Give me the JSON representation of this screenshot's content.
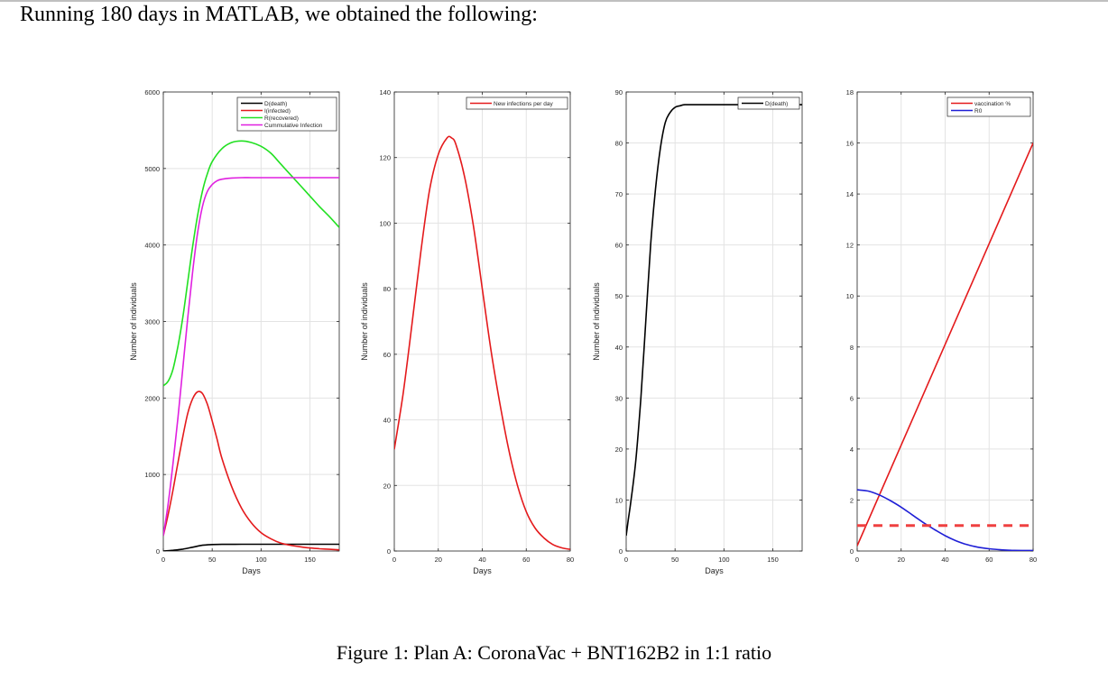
{
  "intro_text": "Running 180 days in MATLAB, we obtained the following:",
  "caption": "Figure 1: Plan A: CoronaVac + BNT162B2 in 1:1 ratio",
  "chart_data": [
    {
      "type": "line",
      "xlabel": "Days",
      "ylabel": "Number of individuals",
      "xlim": [
        0,
        180
      ],
      "ylim": [
        0,
        6000
      ],
      "xticks": [
        0,
        50,
        100,
        150
      ],
      "yticks": [
        0,
        1000,
        2000,
        3000,
        4000,
        5000,
        6000
      ],
      "grid": true,
      "legend_position": "top-right",
      "series": [
        {
          "name": "D(death)",
          "color": "#000000",
          "x": [
            0,
            10,
            20,
            30,
            40,
            50,
            60,
            80,
            100,
            120,
            150,
            180
          ],
          "y": [
            0,
            10,
            25,
            50,
            75,
            85,
            87,
            88,
            88,
            88,
            88,
            88
          ]
        },
        {
          "name": "I(infected)",
          "color": "#e41a1c",
          "x": [
            0,
            5,
            10,
            15,
            20,
            25,
            30,
            35,
            40,
            45,
            50,
            55,
            60,
            70,
            80,
            90,
            100,
            110,
            120,
            130,
            140,
            150,
            160,
            170,
            180
          ],
          "y": [
            200,
            480,
            800,
            1160,
            1500,
            1800,
            1990,
            2080,
            2060,
            1920,
            1700,
            1460,
            1210,
            840,
            560,
            370,
            240,
            160,
            105,
            75,
            55,
            40,
            30,
            22,
            15
          ]
        },
        {
          "name": "R(recovered)",
          "color": "#22e022",
          "x": [
            0,
            5,
            10,
            15,
            20,
            25,
            30,
            35,
            40,
            45,
            50,
            60,
            70,
            80,
            90,
            100,
            110,
            120,
            130,
            140,
            150,
            160,
            170,
            180
          ],
          "y": [
            2160,
            2220,
            2380,
            2680,
            3060,
            3520,
            3980,
            4380,
            4700,
            4930,
            5090,
            5260,
            5340,
            5360,
            5340,
            5290,
            5200,
            5060,
            4920,
            4780,
            4640,
            4500,
            4370,
            4230
          ]
        },
        {
          "name": "Cummulative Infection",
          "color": "#e020e0",
          "x": [
            0,
            5,
            10,
            15,
            20,
            25,
            30,
            35,
            40,
            45,
            50,
            55,
            60,
            70,
            80,
            90,
            100,
            120,
            150,
            180
          ],
          "y": [
            200,
            620,
            1150,
            1750,
            2400,
            3050,
            3650,
            4150,
            4500,
            4700,
            4790,
            4840,
            4860,
            4875,
            4880,
            4880,
            4880,
            4880,
            4880,
            4880
          ]
        }
      ]
    },
    {
      "type": "line",
      "xlabel": "Days",
      "ylabel": "Number of individuals",
      "xlim": [
        0,
        80
      ],
      "ylim": [
        0,
        140
      ],
      "xticks": [
        0,
        20,
        40,
        60,
        80
      ],
      "yticks": [
        0,
        20,
        40,
        60,
        80,
        100,
        120,
        140
      ],
      "grid": true,
      "legend_position": "top-right",
      "series": [
        {
          "name": "New infections per day",
          "color": "#e41a1c",
          "x": [
            0,
            4,
            8,
            12,
            16,
            20,
            24,
            26,
            28,
            32,
            36,
            40,
            44,
            48,
            52,
            56,
            60,
            64,
            68,
            72,
            76,
            80
          ],
          "y": [
            31,
            48,
            69,
            91,
            110,
            121,
            126,
            126,
            124,
            114,
            99,
            80,
            61,
            45,
            31,
            20,
            12,
            7,
            4,
            2,
            1,
            0.5
          ]
        }
      ]
    },
    {
      "type": "line",
      "xlabel": "Days",
      "ylabel": "Number of individuals",
      "xlim": [
        0,
        180
      ],
      "ylim": [
        0,
        90
      ],
      "xticks": [
        0,
        50,
        100,
        150
      ],
      "yticks": [
        0,
        10,
        20,
        30,
        40,
        50,
        60,
        70,
        80,
        90
      ],
      "grid": true,
      "legend_position": "top-right",
      "series": [
        {
          "name": "D(death)",
          "color": "#000000",
          "x": [
            0,
            2,
            5,
            10,
            15,
            20,
            25,
            30,
            35,
            40,
            45,
            50,
            55,
            60,
            70,
            80,
            100,
            120,
            150,
            180
          ],
          "y": [
            3,
            6,
            10,
            18,
            30,
            45,
            60,
            71,
            79,
            84,
            86,
            87,
            87.3,
            87.5,
            87.5,
            87.5,
            87.5,
            87.5,
            87.5,
            87.5
          ]
        }
      ]
    },
    {
      "type": "line",
      "xlabel": "",
      "ylabel": "",
      "xlim": [
        0,
        80
      ],
      "ylim": [
        0,
        18
      ],
      "xticks": [
        0,
        20,
        40,
        60,
        80
      ],
      "yticks": [
        0,
        2,
        4,
        6,
        8,
        10,
        12,
        14,
        16,
        18
      ],
      "grid": true,
      "legend_position": "top-right",
      "series": [
        {
          "name": "vaccination %",
          "color": "#e41a1c",
          "x": [
            0,
            80
          ],
          "y": [
            0.2,
            16
          ]
        },
        {
          "name": "R0",
          "color": "#1f1fd6",
          "x": [
            0,
            5,
            10,
            15,
            20,
            25,
            30,
            35,
            40,
            45,
            50,
            55,
            60,
            65,
            70,
            75,
            80
          ],
          "y": [
            2.4,
            2.35,
            2.2,
            1.98,
            1.72,
            1.42,
            1.12,
            0.85,
            0.6,
            0.4,
            0.25,
            0.15,
            0.09,
            0.05,
            0.03,
            0.02,
            0.02
          ]
        },
        {
          "name": "",
          "color": "#ef4040",
          "dashed": true,
          "x": [
            0,
            80
          ],
          "y": [
            1,
            1
          ]
        }
      ]
    }
  ]
}
